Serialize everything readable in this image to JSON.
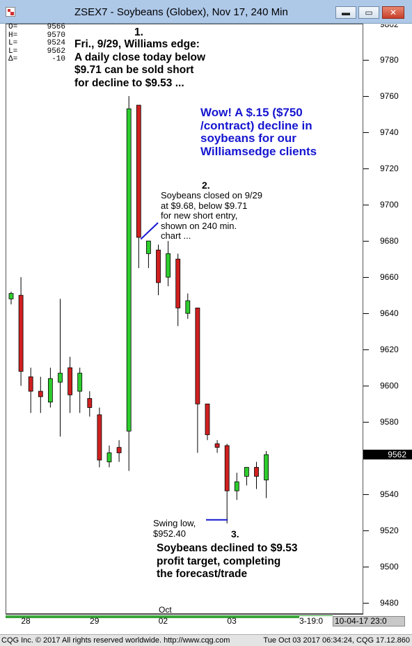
{
  "window": {
    "title": "ZSEX7 - Soybeans (Globex), Nov 17, 240 Min",
    "minimize_label": "▬",
    "maximize_label": "▭",
    "close_label": "✕"
  },
  "ohlc_box": [
    {
      "label": "O=",
      "value": "9566"
    },
    {
      "label": "H=",
      "value": "9570"
    },
    {
      "label": "L=",
      "value": "9524"
    },
    {
      "label": "L=",
      "value": "9562"
    },
    {
      "label": "Δ=",
      "value": "-10"
    }
  ],
  "annotations": {
    "note1": {
      "marker": "1.",
      "lines": [
        "Fri., 9/29, Williams edge:",
        "A daily close today below",
        "$9.71 can be sold short",
        "for decline to $9.53 ..."
      ]
    },
    "headline": {
      "lines": [
        "Wow!  A $.15 ($750",
        "/contract) decline in",
        "soybeans for our",
        "Williamsedge clients"
      ]
    },
    "note2": {
      "marker": "2.",
      "lines": [
        "Soybeans closed on 9/29",
        "at $9.68, below $9.71",
        "for new short entry,",
        "shown on 240 min.",
        "chart ..."
      ]
    },
    "swing_low": {
      "lines": [
        "Swing low,",
        "$952.40"
      ]
    },
    "note3": {
      "marker": "3.",
      "lines": [
        "Soybeans declined to $9.53",
        "profit target, completing",
        "the forecast/trade"
      ]
    }
  },
  "chart_data": {
    "type": "candlestick",
    "ylim": [
      9474,
      9800
    ],
    "y_ticks": [
      9480,
      9500,
      9520,
      9540,
      9560,
      9580,
      9600,
      9620,
      9640,
      9660,
      9680,
      9700,
      9720,
      9740,
      9760,
      9780
    ],
    "top_partial_tick": "9802",
    "last_price": "9562",
    "x_labels": [
      {
        "text": "28",
        "slot": 1.3
      },
      {
        "text": "29",
        "slot": 8.3
      },
      {
        "text": "02",
        "slot": 15.3
      },
      {
        "text": "03",
        "slot": 22.3
      }
    ],
    "month_label": "Oct",
    "candles": [
      {
        "o": 9648,
        "h": 9652,
        "l": 9645,
        "c": 9651
      },
      {
        "o": 9650,
        "h": 9660,
        "l": 9600,
        "c": 9608
      },
      {
        "o": 9605,
        "h": 9610,
        "l": 9585,
        "c": 9597
      },
      {
        "o": 9597,
        "h": 9605,
        "l": 9585,
        "c": 9594
      },
      {
        "o": 9591,
        "h": 9610,
        "l": 9588,
        "c": 9604
      },
      {
        "o": 9602,
        "h": 9648,
        "l": 9572,
        "c": 9607
      },
      {
        "o": 9610,
        "h": 9616,
        "l": 9585,
        "c": 9595
      },
      {
        "o": 9597,
        "h": 9610,
        "l": 9585,
        "c": 9607
      },
      {
        "o": 9593,
        "h": 9597,
        "l": 9583,
        "c": 9588
      },
      {
        "o": 9584,
        "h": 9588,
        "l": 9555,
        "c": 9559
      },
      {
        "o": 9558,
        "h": 9567,
        "l": 9555,
        "c": 9563
      },
      {
        "o": 9566,
        "h": 9570,
        "l": 9558,
        "c": 9563
      },
      {
        "o": 9575,
        "h": 9760,
        "l": 9553,
        "c": 9753
      },
      {
        "o": 9755,
        "h": 9755,
        "l": 9665,
        "c": 9682
      },
      {
        "o": 9673,
        "h": 9680,
        "l": 9665,
        "c": 9680
      },
      {
        "o": 9675,
        "h": 9678,
        "l": 9650,
        "c": 9657
      },
      {
        "o": 9660,
        "h": 9680,
        "l": 9655,
        "c": 9673
      },
      {
        "o": 9670,
        "h": 9673,
        "l": 9633,
        "c": 9643
      },
      {
        "o": 9640,
        "h": 9651,
        "l": 9637,
        "c": 9647
      },
      {
        "o": 9643,
        "h": 9643,
        "l": 9563,
        "c": 9590
      },
      {
        "o": 9590,
        "h": 9590,
        "l": 9570,
        "c": 9573
      },
      {
        "o": 9568,
        "h": 9570,
        "l": 9563,
        "c": 9566
      },
      {
        "o": 9567,
        "h": 9568,
        "l": 9524,
        "c": 9542
      },
      {
        "o": 9542,
        "h": 9552,
        "l": 9537,
        "c": 9547
      },
      {
        "o": 9550,
        "h": 9555,
        "l": 9545,
        "c": 9555
      },
      {
        "o": 9555,
        "h": 9558,
        "l": 9543,
        "c": 9550
      },
      {
        "o": 9548,
        "h": 9564,
        "l": 9538,
        "c": 9562
      }
    ]
  },
  "time_axis": {
    "scroll_label": "3-19:0",
    "range_label": "10-04-17  23:0"
  },
  "status": {
    "left": "CQG Inc. © 2017 All rights reserved worldwide. http://www.cqg.com",
    "right": "Tue Oct 03 2017 06:34:24, CQG 17.12.860"
  },
  "colors": {
    "up": "#2ecc2e",
    "down": "#d02020",
    "annotation_line": "#1515d0"
  }
}
